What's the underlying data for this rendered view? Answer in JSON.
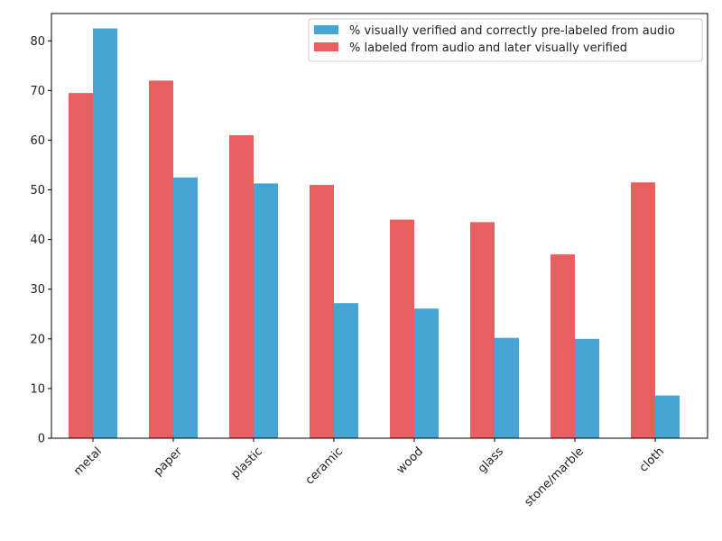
{
  "chart_data": {
    "type": "bar",
    "title": "",
    "xlabel": "",
    "ylabel": "",
    "categories": [
      "metal",
      "paper",
      "plastic",
      "ceramic",
      "wood",
      "glass",
      "stone/marble",
      "cloth"
    ],
    "series": [
      {
        "name": "% labeled from audio and later visually verified",
        "color": "#e85f5f",
        "values": [
          69.5,
          72.0,
          61.0,
          51.0,
          44.0,
          43.5,
          37.0,
          51.5
        ]
      },
      {
        "name": "% visually verified and correctly pre-labeled from audio",
        "color": "#46a5d5",
        "values": [
          82.5,
          52.5,
          51.3,
          27.2,
          26.1,
          20.2,
          20.0,
          8.6
        ]
      }
    ],
    "legend_order": [
      1,
      0
    ],
    "legend_position": "top-right",
    "ylim": [
      0,
      85.5
    ],
    "yticks": [
      0,
      10,
      20,
      30,
      40,
      50,
      60,
      70,
      80
    ],
    "grid": false
  }
}
